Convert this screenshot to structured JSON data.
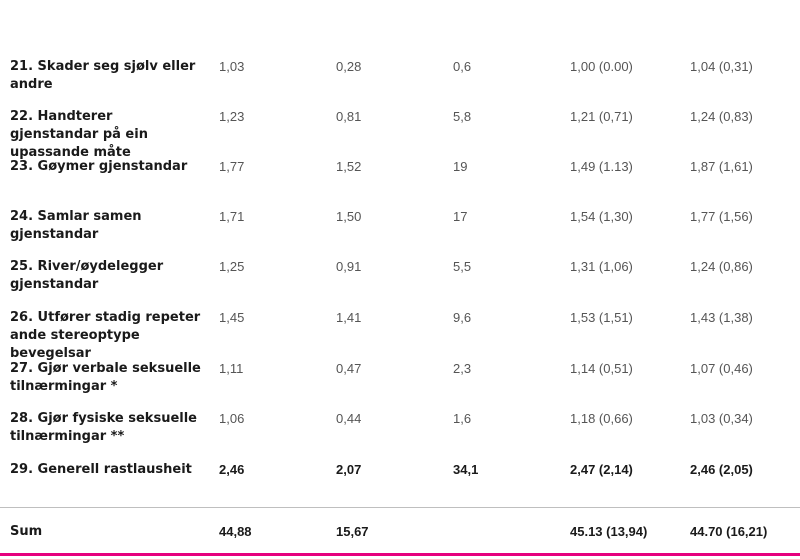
{
  "rows": [
    {
      "label": "21. Skader seg sjølv eller andre",
      "v1": "1,03",
      "v2": "0,28",
      "v3": "0,6",
      "v4": "1,00 (0.00)",
      "v5": "1,04 (0,31)"
    },
    {
      "label": "22. Handterer gjenstandar på ein upassande måte",
      "v1": "1,23",
      "v2": "0,81",
      "v3": "5,8",
      "v4": "1,21 (0,71)",
      "v5": "1,24 (0,83)"
    },
    {
      "label": "23. Gøymer gjenstandar",
      "v1": "1,77",
      "v2": "1,52",
      "v3": "19",
      "v4": "1,49 (1.13)",
      "v5": "1,87 (1,61)"
    },
    {
      "label": "24. Samlar samen gjenstandar",
      "v1": "1,71",
      "v2": "1,50",
      "v3": "17",
      "v4": "1,54 (1,30)",
      "v5": "1,77 (1,56)"
    },
    {
      "label": "25. River/øydelegger gjenstandar",
      "v1": "1,25",
      "v2": "0,91",
      "v3": "5,5",
      "v4": "1,31 (1,06)",
      "v5": "1,24 (0,86)"
    },
    {
      "label": "26. Utfører stadig repeter ande stereoptype bevegelsar",
      "v1": "1,45",
      "v2": "1,41",
      "v3": "9,6",
      "v4": "1,53 (1,51)",
      "v5": "1,43 (1,38)"
    },
    {
      "label": "27. Gjør verbale seksuelle tilnærmingar *",
      "v1": "1,11",
      "v2": "0,47",
      "v3": "2,3",
      "v4": "1,14 (0,51)",
      "v5": "1,07 (0,46)"
    },
    {
      "label": "28. Gjør fysiske seksuelle tilnærmingar **",
      "v1": "1,06",
      "v2": "0,44",
      "v3": "1,6",
      "v4": "1,18 (0,66)",
      "v5": "1,03 (0,34)"
    },
    {
      "label": "29. Generell rastlausheit",
      "v1": "2,46",
      "v2": "2,07",
      "v3": "34,1",
      "v4": "2,47 (2,14)",
      "v5": "2,46 (2,05)"
    }
  ],
  "sum": {
    "label": "Sum",
    "v1": "44,88",
    "v2": "15,67",
    "v3": "",
    "v4": "45.13 (13,94)",
    "v5": "44.70 (16,21)"
  },
  "colors": {
    "accent_line": "#e6007e",
    "divider": "#bfbfbf"
  }
}
